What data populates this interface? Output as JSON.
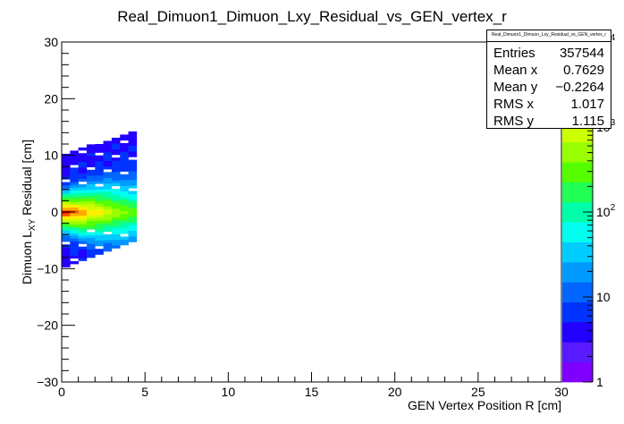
{
  "chart_data": {
    "type": "heatmap",
    "title": "Real_Dimuon1_Dimuon_Lxy_Residual_vs_GEN_vertex_r",
    "xlabel": "GEN Vertex Position R [cm]",
    "ylabel_main": "Dimuon L",
    "ylabel_sub": "XY",
    "ylabel_tail": " Residual [cm]",
    "xlim": [
      0,
      30
    ],
    "ylim": [
      -30,
      30
    ],
    "x_ticks": [
      "0",
      "5",
      "10",
      "15",
      "20",
      "25",
      "30"
    ],
    "y_ticks": [
      "−30",
      "−20",
      "−10",
      "0",
      "10",
      "20",
      "30"
    ],
    "z_scale": "log",
    "z_ticks": [
      {
        "label": "1",
        "value": 1
      },
      {
        "label": "10",
        "value": 10
      },
      {
        "label": "10",
        "exp": "2",
        "value": 100
      },
      {
        "label": "10",
        "exp": "3",
        "value": 1000
      },
      {
        "label": "10",
        "exp": "4",
        "value": 10000
      }
    ],
    "stats": {
      "title": "Real_Dimuon1_Dimuon_Lxy_Residual_vs_GEN_vertex_r",
      "rows": [
        {
          "label": "Entries",
          "value": "357544"
        },
        {
          "label": "Mean x",
          "value": "0.7629"
        },
        {
          "label": "Mean y",
          "value": "−0.2264"
        },
        {
          "label": "RMS x",
          "value": "1.017"
        },
        {
          "label": "RMS y",
          "value": "1.115"
        }
      ]
    },
    "distribution": {
      "x_range": [
        0,
        4.5
      ],
      "core_y": 0,
      "upper_edge_at_x0": 10,
      "upper_edge_at_xmax": 14,
      "lower_edge_at_x0": -10,
      "lower_edge_at_xmax": -5
    },
    "palette": [
      "#7f00ff",
      "#5a1aff",
      "#2200ff",
      "#0033ff",
      "#0066ff",
      "#0099ff",
      "#00ccff",
      "#00ffee",
      "#00ffaa",
      "#22ff55",
      "#55ff00",
      "#99ff00",
      "#ccff00",
      "#ffee00",
      "#ffaa00",
      "#ff5500",
      "#ff0000"
    ]
  }
}
